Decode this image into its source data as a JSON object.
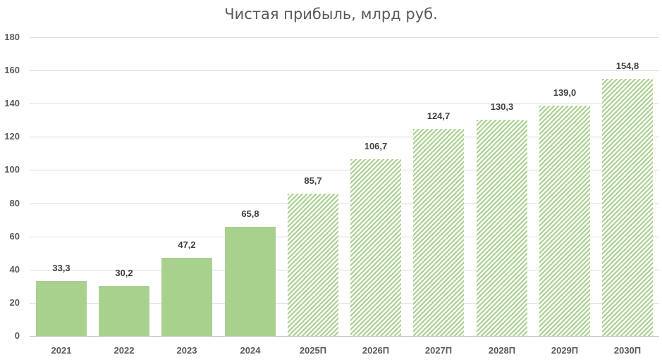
{
  "chart_data": {
    "type": "bar",
    "title": "Чистая прибыль, млрд руб.",
    "xlabel": "",
    "ylabel": "",
    "ylim": [
      0,
      180
    ],
    "yticks": [
      0,
      20,
      40,
      60,
      80,
      100,
      120,
      140,
      160,
      180
    ],
    "grid": true,
    "legend": null,
    "categories": [
      "2021",
      "2022",
      "2023",
      "2024",
      "2025П",
      "2026П",
      "2027П",
      "2028П",
      "2029П",
      "2030П"
    ],
    "values": [
      33.3,
      30.2,
      47.2,
      65.8,
      85.7,
      106.7,
      124.7,
      130.3,
      139.0,
      154.8
    ],
    "value_labels": [
      "33,3",
      "30,2",
      "47,2",
      "65,8",
      "85,7",
      "106,7",
      "124,7",
      "130,3",
      "139,0",
      "154,8"
    ],
    "styles": [
      "actual",
      "actual",
      "actual",
      "actual",
      "forecast",
      "forecast",
      "forecast",
      "forecast",
      "forecast",
      "forecast"
    ],
    "colors": {
      "bar": "#a9d18e",
      "grid": "#d9d9d9",
      "text": "#595959",
      "labels": "#404040"
    }
  }
}
